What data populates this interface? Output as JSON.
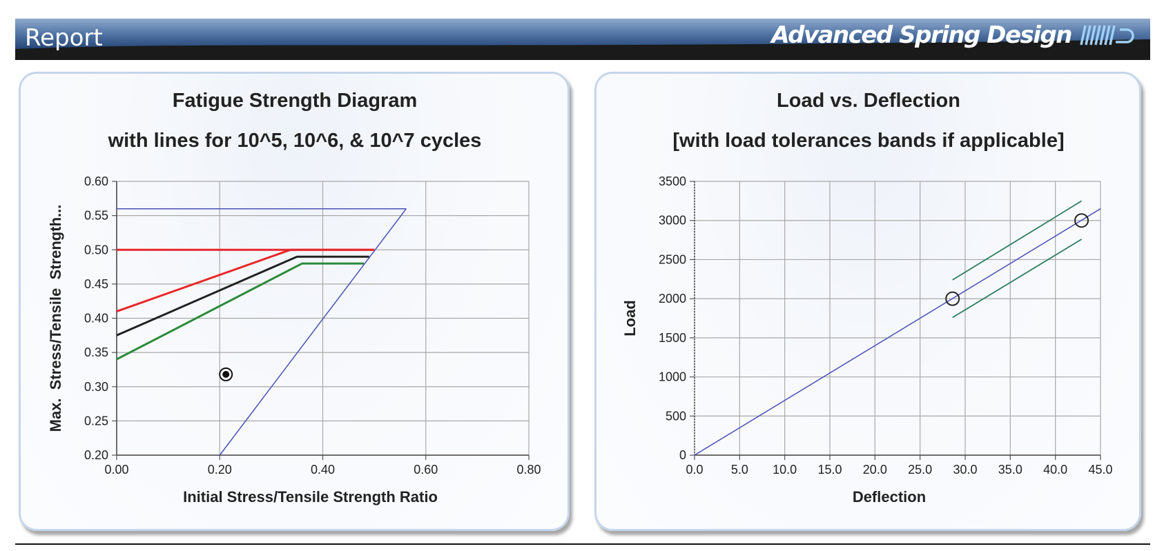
{
  "header": {
    "title": "Report",
    "brand": "Advanced Spring Design",
    "brand_logo": "spring-coil-logo"
  },
  "charts": {
    "fatigue": {
      "title": "Fatigue Strength Diagram",
      "subtitle": "with lines for 10^5, 10^6, & 10^7 cycles"
    },
    "load": {
      "title": "Load vs. Deflection",
      "subtitle": "[with load tolerances bands if applicable]"
    }
  },
  "chart_data": [
    {
      "type": "line",
      "title": "Fatigue Strength Diagram",
      "subtitle": "with lines for 10^5, 10^6, & 10^7 cycles",
      "xlabel": "Initial Stress/Tensile Strength Ratio",
      "ylabel": "Max.  Stress/Tensile  Strength...",
      "xlim": [
        0.0,
        0.8
      ],
      "ylim": [
        0.2,
        0.6
      ],
      "x_ticks": [
        "0.00",
        "0.20",
        "0.40",
        "0.60",
        "0.80"
      ],
      "y_ticks": [
        "0.20",
        "0.25",
        "0.30",
        "0.35",
        "0.40",
        "0.45",
        "0.50",
        "0.55",
        "0.60"
      ],
      "grid": true,
      "series": [
        {
          "color": "#4a4fb5",
          "x": [
            0.0,
            0.562
          ],
          "y": [
            0.56,
            0.56
          ]
        },
        {
          "color": "#4a4fb5",
          "x": [
            0.2,
            0.562
          ],
          "y": [
            0.2,
            0.56
          ]
        },
        {
          "color": "#e8262a",
          "x": [
            0.0,
            0.5
          ],
          "y": [
            0.5,
            0.5
          ]
        },
        {
          "color": "#e8262a",
          "x": [
            0.0,
            0.337,
            0.5
          ],
          "y": [
            0.41,
            0.5,
            0.5
          ]
        },
        {
          "color": "#222222",
          "x": [
            0.0,
            0.35,
            0.49
          ],
          "y": [
            0.375,
            0.49,
            0.49
          ]
        },
        {
          "color": "#2a8a3a",
          "x": [
            0.0,
            0.36,
            0.48
          ],
          "y": [
            0.34,
            0.48,
            0.48
          ]
        }
      ],
      "points": [
        {
          "x": 0.212,
          "y": 0.318,
          "marker": "target"
        }
      ]
    },
    {
      "type": "line",
      "title": "Load vs. Deflection",
      "subtitle": "[with load tolerances bands if applicable]",
      "xlabel": "Deflection",
      "ylabel": "Load",
      "xlim": [
        0.0,
        45.0
      ],
      "ylim": [
        0,
        3500
      ],
      "x_ticks": [
        "0.0",
        "5.0",
        "10.0",
        "15.0",
        "20.0",
        "25.0",
        "30.0",
        "35.0",
        "40.0",
        "45.0"
      ],
      "y_ticks": [
        "0",
        "500",
        "1000",
        "1500",
        "2000",
        "2500",
        "3000",
        "3500"
      ],
      "grid": true,
      "series": [
        {
          "color": "#4a4fb5",
          "x": [
            0.0,
            45.0
          ],
          "y": [
            0,
            3150
          ]
        },
        {
          "color": "#2e7d5e",
          "x": [
            28.6,
            42.9
          ],
          "y": [
            2240,
            3250
          ]
        },
        {
          "color": "#2e7d5e",
          "x": [
            28.6,
            42.9
          ],
          "y": [
            1760,
            2760
          ]
        }
      ],
      "points": [
        {
          "x": 28.6,
          "y": 2000,
          "marker": "circle"
        },
        {
          "x": 42.9,
          "y": 3000,
          "marker": "circle"
        }
      ]
    }
  ]
}
